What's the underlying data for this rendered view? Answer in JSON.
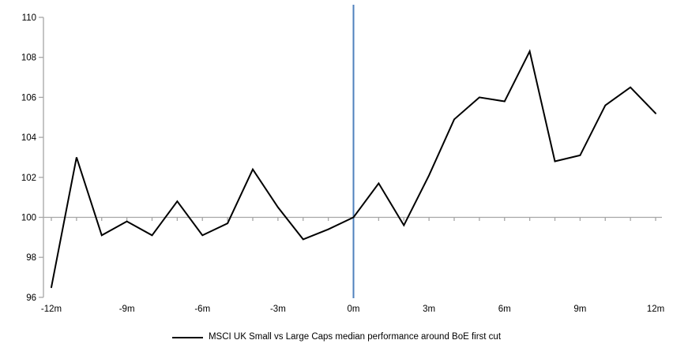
{
  "chart_data": {
    "type": "line",
    "title": "",
    "xlabel": "",
    "ylabel": "",
    "x": [
      -12,
      -11,
      -10,
      -9,
      -8,
      -7,
      -6,
      -5,
      -4,
      -3,
      -2,
      -1,
      0,
      1,
      2,
      3,
      4,
      5,
      6,
      7,
      8,
      9,
      10,
      11,
      12
    ],
    "series": [
      {
        "name": "MSCI UK Small vs Large Caps median performance around BoE first cut",
        "color": "#000000",
        "values": [
          96.5,
          103.0,
          99.1,
          99.8,
          99.1,
          100.8,
          99.1,
          99.7,
          102.4,
          100.5,
          98.9,
          99.4,
          100.0,
          101.7,
          99.6,
          102.1,
          104.9,
          106.0,
          105.8,
          108.3,
          102.8,
          103.1,
          105.6,
          106.5,
          105.2
        ]
      }
    ],
    "ylim": [
      96,
      110
    ],
    "y_ticks": [
      96,
      98,
      100,
      102,
      104,
      106,
      108,
      110
    ],
    "x_tick_positions": [
      -12,
      -9,
      -6,
      -3,
      0,
      3,
      6,
      9,
      12
    ],
    "x_tick_labels": [
      "-12m",
      "-9m",
      "-6m",
      "-3m",
      "0m",
      "3m",
      "6m",
      "9m",
      "12m"
    ],
    "minor_x_tick_step": 1,
    "baseline_value": 100,
    "event_line_x": 0,
    "grid": "off",
    "legend_position": "bottom-center",
    "colors": {
      "axis": "#a6a6a6",
      "baseline": "#a6a6a6",
      "event_line": "#4f81bd",
      "text": "#000000",
      "series": "#000000"
    }
  },
  "legend": {
    "label": "MSCI UK Small vs Large Caps median performance around BoE first cut"
  }
}
